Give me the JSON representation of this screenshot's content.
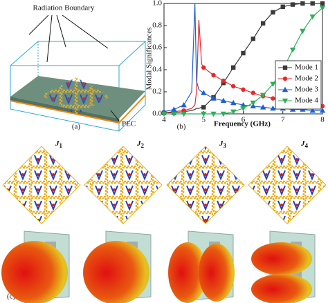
{
  "panel_a": {
    "boundary_label": "Radiation Boundary",
    "pec_label": "PEC",
    "caption": "(a)"
  },
  "chart_data": {
    "type": "line",
    "caption": "(b)",
    "x_label": "Frequency (GHz)",
    "y_label": "Modal Significances",
    "x": [
      4,
      4.25,
      4.5,
      4.7,
      4.78,
      4.82,
      4.88,
      4.95,
      5,
      5.25,
      5.5,
      5.75,
      6,
      6.25,
      6.5,
      6.75,
      7,
      7.25,
      7.5,
      7.75,
      8
    ],
    "series": [
      {
        "name": "Mode 1",
        "color": "#3a3a3a",
        "marker": "square",
        "values": [
          0.01,
          0.01,
          0.02,
          0.03,
          0.04,
          0.05,
          0.05,
          0.06,
          0.06,
          0.15,
          0.28,
          0.42,
          0.55,
          0.68,
          0.82,
          0.92,
          0.97,
          0.99,
          1,
          1,
          1
        ]
      },
      {
        "name": "Mode 2",
        "color": "#e8292b",
        "marker": "circle",
        "values": [
          0.01,
          0.02,
          0.03,
          0.05,
          0.08,
          0.2,
          0.85,
          0.45,
          0.42,
          0.35,
          0.3,
          0.25,
          0.22,
          0.19,
          0.16,
          0.14,
          0.12,
          0.11,
          0.1,
          0.08,
          0.07
        ]
      },
      {
        "name": "Mode 3",
        "color": "#1f5fd6",
        "marker": "triangle-up",
        "values": [
          0.02,
          0.04,
          0.08,
          0.2,
          1,
          0.3,
          0.22,
          0.2,
          0.19,
          0.14,
          0.12,
          0.1,
          0.08,
          0.07,
          0.06,
          0.05,
          0.05,
          0.04,
          0.04,
          0.03,
          0.03
        ]
      },
      {
        "name": "Mode 4",
        "color": "#2fae5a",
        "marker": "triangle-down",
        "values": [
          0,
          0,
          0,
          0,
          0,
          0,
          0,
          0,
          0,
          0,
          0,
          0.02,
          0.05,
          0.1,
          0.17,
          0.27,
          0.4,
          0.58,
          0.75,
          0.88,
          0.96
        ]
      }
    ],
    "xlim": [
      4,
      8
    ],
    "xticks": [
      4,
      5,
      6,
      7,
      8
    ],
    "ylim": [
      0,
      1
    ],
    "yticks": [
      {
        "value": 0,
        "label": "0.0"
      },
      {
        "value": 0.2,
        "label": "0.2"
      },
      {
        "value": 0.4,
        "label": "0.4"
      },
      {
        "value": 0.6,
        "label": "0.6"
      },
      {
        "value": 0.8,
        "label": "0.8"
      },
      {
        "value": 1,
        "label": "1.0"
      }
    ],
    "legend": "right"
  },
  "panel_c": {
    "caption": "(c)",
    "currents": [
      {
        "symbol": "J",
        "index": "1"
      },
      {
        "symbol": "J",
        "index": "2"
      },
      {
        "symbol": "J",
        "index": "3"
      },
      {
        "symbol": "J",
        "index": "4"
      }
    ]
  }
}
